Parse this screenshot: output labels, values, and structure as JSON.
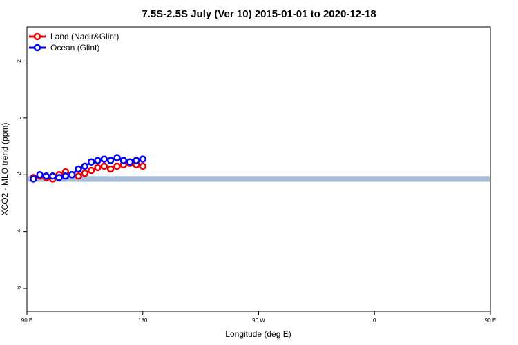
{
  "chart_data": {
    "type": "line",
    "title": "7.5S-2.5S July (Ver 10)   2015-01-01 to 2020-12-18",
    "xlabel": "Longitude (deg E)",
    "ylabel": "XCO2 - MLO trend (ppm)",
    "xlim": [
      90,
      450
    ],
    "ylim": [
      -6.8,
      3.2
    ],
    "x_ticks": [
      {
        "value": 90,
        "label": "90 E"
      },
      {
        "value": 180,
        "label": "180"
      },
      {
        "value": 270,
        "label": "90 W"
      },
      {
        "value": 360,
        "label": "0"
      },
      {
        "value": 450,
        "label": "90 E"
      },
      {
        "value": 540,
        "label": "180"
      }
    ],
    "y_ticks": [
      {
        "value": 2,
        "label": "2"
      },
      {
        "value": 0,
        "label": "0"
      },
      {
        "value": -2,
        "label": "-2"
      },
      {
        "value": -4,
        "label": "-4"
      },
      {
        "value": -6,
        "label": "-6"
      }
    ],
    "grid": false,
    "legend_position": "top-left",
    "series": [
      {
        "name": "Land (Nadir&Glint)",
        "color": "#ee0000",
        "x": [
          95,
          100,
          105,
          110,
          115,
          120,
          125,
          130,
          135,
          140,
          145,
          150,
          155,
          160,
          165,
          170,
          175,
          180
        ],
        "y": [
          -2.1,
          -2.05,
          -2.1,
          -2.15,
          -2.0,
          -1.9,
          -2.0,
          -2.05,
          -1.95,
          -1.85,
          -1.75,
          -1.7,
          -1.8,
          -1.7,
          -1.65,
          -1.6,
          -1.65,
          -1.7
        ]
      },
      {
        "name": "Ocean (Glint)",
        "color": "#0000ee",
        "x": [
          95,
          100,
          105,
          110,
          115,
          120,
          125,
          130,
          135,
          140,
          145,
          150,
          155,
          160,
          165,
          170,
          175,
          180
        ],
        "y": [
          -2.15,
          -2.0,
          -2.05,
          -2.05,
          -2.1,
          -2.05,
          -2.0,
          -1.8,
          -1.7,
          -1.55,
          -1.5,
          -1.45,
          -1.5,
          -1.4,
          -1.5,
          -1.55,
          -1.5,
          -1.45
        ]
      }
    ],
    "shaded_band": {
      "y_low": -2.25,
      "y_high": -2.05,
      "color": "#a8bcd8",
      "land_color": "#ffdb7a"
    }
  }
}
